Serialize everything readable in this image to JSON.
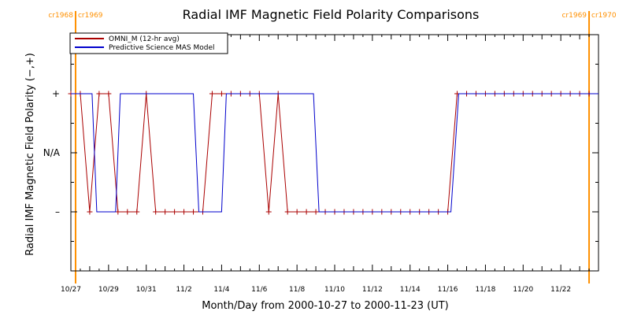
{
  "chart_data": {
    "type": "line",
    "title": "Radial IMF Magnetic Field Polarity Comparisons",
    "xlabel": "Month/Day from 2000-10-27 to 2000-11-23 (UT)",
    "ylabel": "Radial IMF Magnetic Field Polarity (−,+)",
    "xlim": [
      "2000-10-27",
      "2000-11-24"
    ],
    "ylim": [
      -2,
      2
    ],
    "x_ticks": [
      "10/27",
      "10/29",
      "10/31",
      "11/2",
      "11/4",
      "11/6",
      "11/8",
      "11/10",
      "11/12",
      "11/14",
      "11/16",
      "11/18",
      "11/20",
      "11/22"
    ],
    "y_ticks": [
      {
        "value": 1,
        "label": "+"
      },
      {
        "value": 0,
        "label": "N/A"
      },
      {
        "value": -1,
        "label": "–"
      }
    ],
    "legend_position": "top-left",
    "carrington_markers": [
      {
        "date": "2000-10-27 06:00",
        "left_label": "cr1968",
        "right_label": "cr1969"
      },
      {
        "date": "2000-11-23 12:00",
        "left_label": "cr1969",
        "right_label": "cr1970"
      }
    ],
    "series": [
      {
        "name": "OMNI_M (12-hr avg)",
        "color": "#aa0000",
        "marker": "plus",
        "x": [
          "2000-10-27 00:00",
          "2000-10-27 12:00",
          "2000-10-28 00:00",
          "2000-10-28 12:00",
          "2000-10-29 00:00",
          "2000-10-29 12:00",
          "2000-10-30 00:00",
          "2000-10-30 12:00",
          "2000-10-31 00:00",
          "2000-10-31 12:00",
          "2000-11-01 00:00",
          "2000-11-01 12:00",
          "2000-11-02 00:00",
          "2000-11-02 12:00",
          "2000-11-03 00:00",
          "2000-11-03 12:00",
          "2000-11-04 00:00",
          "2000-11-04 12:00",
          "2000-11-05 00:00",
          "2000-11-05 12:00",
          "2000-11-06 00:00",
          "2000-11-06 12:00",
          "2000-11-07 00:00",
          "2000-11-07 12:00",
          "2000-11-08 00:00",
          "2000-11-08 12:00",
          "2000-11-09 00:00",
          "2000-11-09 12:00",
          "2000-11-10 00:00",
          "2000-11-10 12:00",
          "2000-11-11 00:00",
          "2000-11-11 12:00",
          "2000-11-12 00:00",
          "2000-11-12 12:00",
          "2000-11-13 00:00",
          "2000-11-13 12:00",
          "2000-11-14 00:00",
          "2000-11-14 12:00",
          "2000-11-15 00:00",
          "2000-11-15 12:00",
          "2000-11-16 00:00",
          "2000-11-16 12:00",
          "2000-11-17 00:00",
          "2000-11-17 12:00",
          "2000-11-18 00:00",
          "2000-11-18 12:00",
          "2000-11-19 00:00",
          "2000-11-19 12:00",
          "2000-11-20 00:00",
          "2000-11-20 12:00",
          "2000-11-21 00:00",
          "2000-11-21 12:00",
          "2000-11-22 00:00",
          "2000-11-22 12:00",
          "2000-11-23 00:00",
          "2000-11-23 12:00"
        ],
        "values": [
          1,
          1,
          -1,
          1,
          1,
          -1,
          -1,
          -1,
          1,
          -1,
          -1,
          -1,
          -1,
          -1,
          -1,
          1,
          1,
          1,
          1,
          1,
          1,
          -1,
          1,
          -1,
          -1,
          -1,
          -1,
          -1,
          -1,
          -1,
          -1,
          -1,
          -1,
          -1,
          -1,
          -1,
          -1,
          -1,
          -1,
          -1,
          -1,
          1,
          1,
          1,
          1,
          1,
          1,
          1,
          1,
          1,
          1,
          1,
          1,
          1,
          1,
          1
        ]
      },
      {
        "name": "Predictive Science MAS Model",
        "color": "#0000cc",
        "x": [
          "2000-10-27 00:00",
          "2000-10-28 03:00",
          "2000-10-28 09:00",
          "2000-10-29 09:00",
          "2000-10-29 15:00",
          "2000-11-02 12:00",
          "2000-11-02 19:00",
          "2000-11-04 00:00",
          "2000-11-04 06:00",
          "2000-11-08 21:00",
          "2000-11-09 04:00",
          "2000-11-16 04:00",
          "2000-11-16 14:00",
          "2000-11-24 00:00"
        ],
        "values": [
          1,
          1,
          -1,
          -1,
          1,
          1,
          -1,
          -1,
          1,
          1,
          -1,
          -1,
          1,
          1
        ]
      }
    ]
  }
}
